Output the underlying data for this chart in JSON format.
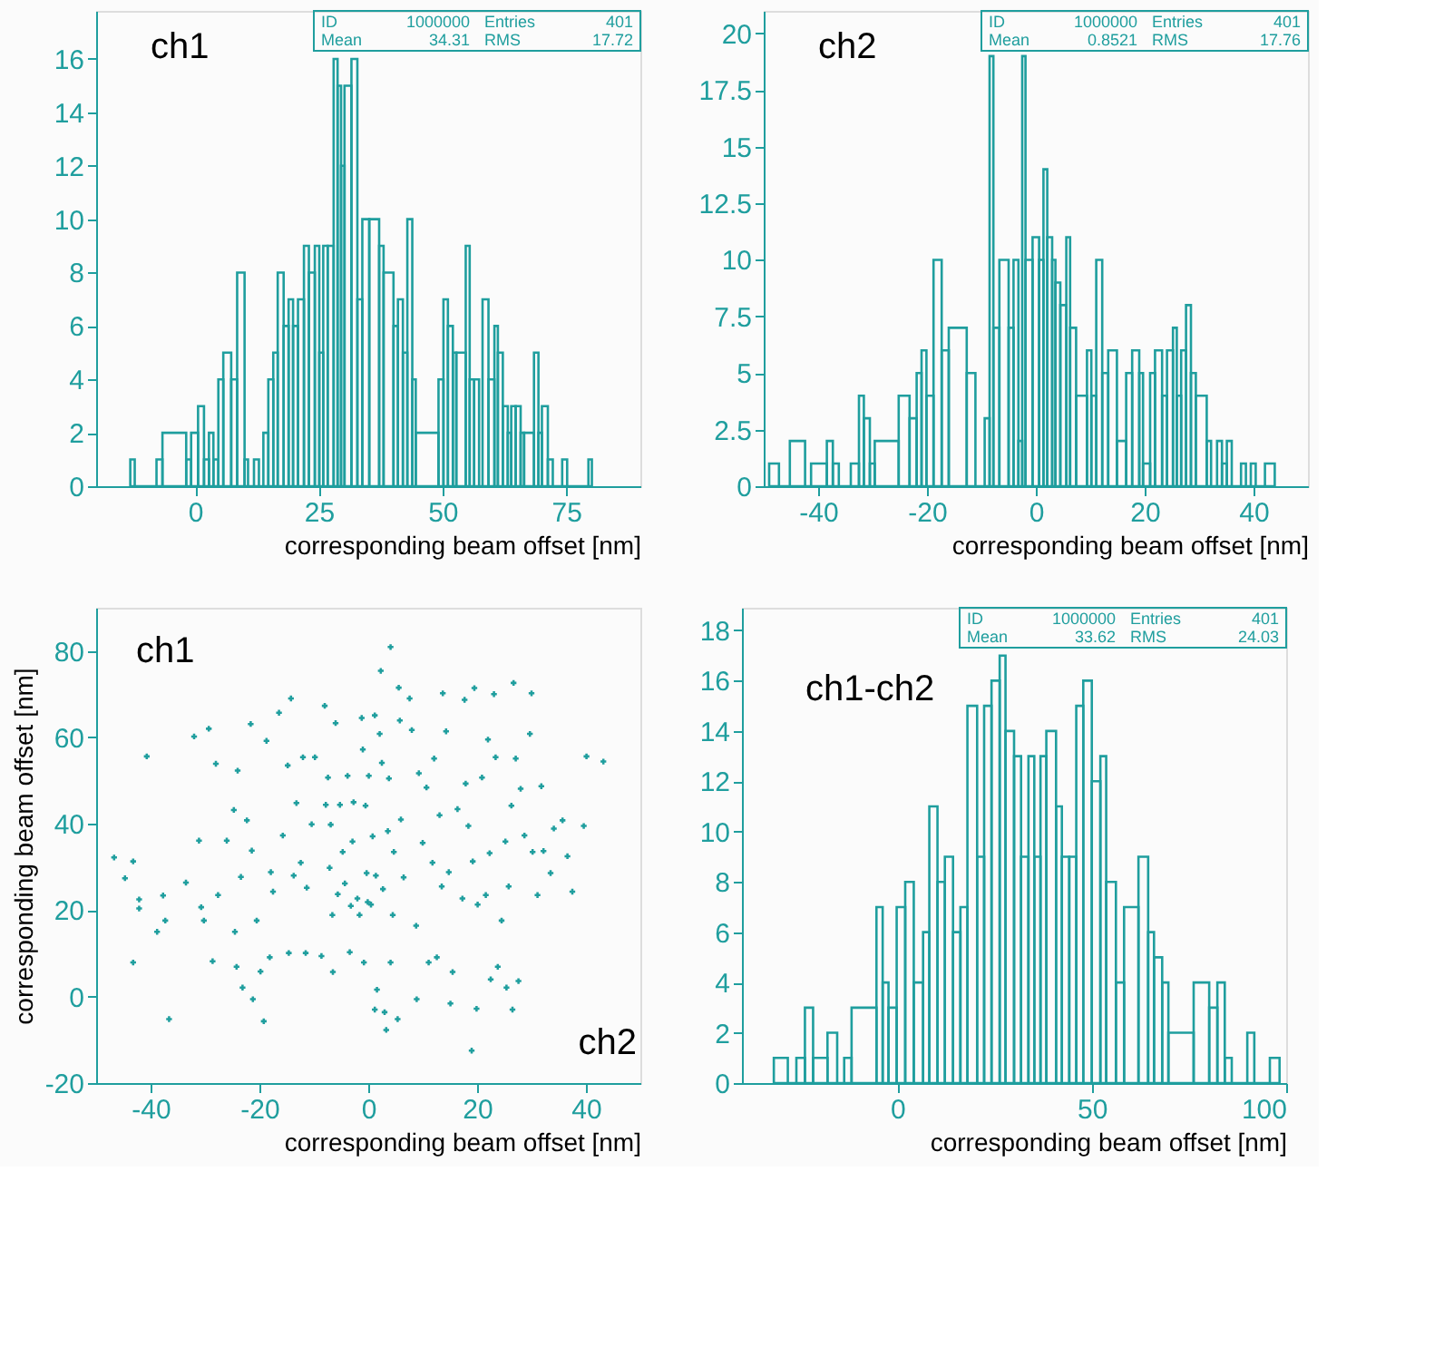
{
  "chart_data": [
    {
      "type": "histogram",
      "color": "#1f9e9e",
      "xlabel": "corresponding beam offset [nm]",
      "grid": false,
      "xlim": [
        -20,
        90
      ],
      "ylim": [
        0,
        17.8
      ],
      "xticks": [
        0,
        25,
        50,
        75
      ],
      "yticks": [
        0,
        2,
        4,
        6,
        8,
        10,
        12,
        14,
        16
      ],
      "annotations": [
        "ch1",
        "ID",
        "1000000",
        "Entries",
        "401",
        "Mean",
        "34.31",
        "RMS",
        "17.72"
      ],
      "bins": [
        -13.1,
        -12.2,
        -7.8,
        -6.6,
        -1.8,
        -0.8,
        0.6,
        1.8,
        2.8,
        3.7,
        4.7,
        5.7,
        7.3,
        8.5,
        10.0,
        10.7,
        11.9,
        12.9,
        13.8,
        14.8,
        15.8,
        16.7,
        17.9,
        18.9,
        19.8,
        20.8,
        22.0,
        23.0,
        24.2,
        25.1,
        25.9,
        26.8,
        28.0,
        28.8,
        29.5,
        30.2,
        31.6,
        32.8,
        33.8,
        35.2,
        37.2,
        38.1,
        40.1,
        41.0,
        42.0,
        42.9,
        43.9,
        44.6,
        49.2,
        50.2,
        51.1,
        52.1,
        52.8,
        54.7,
        55.5,
        56.4,
        57.4,
        58.1,
        59.3,
        60.5,
        61.2,
        62.2,
        63.2,
        63.9,
        64.8,
        65.8,
        66.5,
        68.5,
        69.4,
        70.1,
        71.3,
        72.3,
        74.2,
        75.2,
        79.5,
        80.2
      ],
      "values": [
        1,
        0,
        1,
        2,
        1,
        2,
        3,
        1,
        2,
        1,
        4,
        5,
        4,
        8,
        1,
        0,
        1,
        0,
        2,
        4,
        5,
        8,
        6,
        7,
        6,
        7,
        9,
        8,
        9,
        5,
        9,
        9,
        16,
        15,
        12,
        15,
        16,
        7,
        10,
        10,
        9,
        8,
        6,
        7,
        5,
        10,
        4,
        2,
        4,
        7,
        6,
        5,
        5,
        9,
        4,
        4,
        0,
        7,
        4,
        6,
        5,
        3,
        2,
        3,
        3,
        2,
        2,
        5,
        2,
        3,
        1,
        0,
        1,
        0,
        1
      ]
    },
    {
      "type": "histogram",
      "color": "#1f9e9e",
      "xlabel": "corresponding beam offset [nm]",
      "grid": false,
      "xlim": [
        -50,
        50
      ],
      "ylim": [
        0,
        21
      ],
      "xticks": [
        -40,
        -20,
        0,
        20,
        40
      ],
      "yticks": [
        0,
        2.5,
        5,
        7.5,
        10,
        12.5,
        15,
        17.5,
        20
      ],
      "annotations": [
        "ch2",
        "ID",
        "1000000",
        "Entries",
        "401",
        "Mean",
        "0.8521",
        "RMS",
        "17.76"
      ],
      "bins": [
        -49.0,
        -47.2,
        -45.2,
        -42.4,
        -41.3,
        -38.4,
        -37.3,
        -36.2,
        -34.0,
        -32.5,
        -31.6,
        -30.5,
        -29.6,
        -25.2,
        -23.2,
        -21.9,
        -21.0,
        -20.1,
        -18.8,
        -17.3,
        -16.0,
        -12.7,
        -11.1,
        -9.4,
        -8.5,
        -7.8,
        -6.7,
        -5.0,
        -4.1,
        -3.2,
        -2.5,
        -1.9,
        -0.6,
        0.6,
        1.4,
        2.1,
        3.0,
        3.6,
        4.5,
        5.6,
        6.3,
        7.4,
        9.4,
        10.2,
        11.1,
        12.2,
        13.3,
        14.9,
        16.6,
        17.7,
        19.0,
        19.7,
        21.0,
        21.9,
        23.2,
        24.1,
        25.2,
        25.9,
        26.7,
        27.6,
        28.5,
        29.4,
        31.4,
        32.2,
        33.3,
        34.2,
        35.1,
        36.0,
        37.7,
        38.6,
        39.5,
        40.4,
        42.1,
        43.9
      ],
      "values": [
        1,
        0,
        2,
        0,
        1,
        2,
        1,
        0,
        1,
        4,
        3,
        1,
        2,
        4,
        3,
        5,
        6,
        4,
        10,
        6,
        7,
        5,
        0,
        3,
        19,
        7,
        10,
        7,
        10,
        2,
        19,
        10,
        11,
        10,
        14,
        11,
        10,
        9,
        8,
        11,
        7,
        4,
        6,
        4,
        10,
        5,
        6,
        2,
        5,
        6,
        5,
        1,
        5,
        6,
        4,
        6,
        7,
        4,
        6,
        8,
        5,
        4,
        2,
        0,
        2,
        1,
        2,
        0,
        1,
        0,
        1,
        0,
        1
      ]
    },
    {
      "type": "scatter",
      "color": "#1f9e9e",
      "marker": "cross",
      "xlabel": "corresponding beam offset [nm]",
      "ylabel": "corresponding beam offset [nm]",
      "grid": false,
      "xlim": [
        -50,
        50
      ],
      "ylim": [
        -20,
        90
      ],
      "xticks": [
        -40,
        -20,
        0,
        20,
        40
      ],
      "yticks": [
        -20,
        0,
        20,
        40,
        60,
        80
      ],
      "annotations": [
        "ch1",
        "ch2"
      ],
      "x": [
        -46.7,
        -44.7,
        -43.2,
        -40.7,
        -43.2,
        -42.1,
        -42.1,
        -38.8,
        -37.7,
        -37.3,
        -36.6,
        -33.5,
        -32.0,
        -31.1,
        -30.7,
        -30.2,
        -29.3,
        -28.6,
        -28.0,
        -27.6,
        -26.0,
        -24.7,
        -24.5,
        -24.0,
        -24.2,
        -23.4,
        -23.1,
        -22.3,
        -21.6,
        -21.4,
        -21.2,
        -20.5,
        -19.8,
        -19.2,
        -18.7,
        -17.9,
        -18.1,
        -17.5,
        -16.4,
        -15.7,
        -14.8,
        -14.6,
        -14.2,
        -13.7,
        -13.2,
        -12.4,
        -12.0,
        -11.5,
        -11.3,
        -10.4,
        -9.8,
        -8.6,
        -8.0,
        -7.8,
        -7.4,
        -7.1,
        -6.9,
        -6.6,
        -6.5,
        -6.0,
        -5.6,
        -5.2,
        -4.7,
        -4.3,
        -3.8,
        -3.4,
        -3.2,
        -2.9,
        -2.7,
        -2.0,
        -1.6,
        -1.2,
        -1.0,
        -0.8,
        -0.5,
        -0.3,
        -0.1,
        0.1,
        0.5,
        0.8,
        1.2,
        1.2,
        1.4,
        1.6,
        2.1,
        2.3,
        2.5,
        2.7,
        3.0,
        3.3,
        3.6,
        3.8,
        4.1,
        4.1,
        4.5,
        4.7,
        5.4,
        5.6,
        5.8,
        6.0,
        6.5,
        7.6,
        8.0,
        8.8,
        8.9,
        9.3,
        10.0,
        10.7,
        11.1,
        11.8,
        12.1,
        12.6,
        13.1,
        13.5,
        13.7,
        14.3,
        14.8,
        15.1,
        15.5,
        16.4,
        17.3,
        17.7,
        17.9,
        18.4,
        19.0,
        19.2,
        19.5,
        19.9,
        20.1,
        20.9,
        21.6,
        22.0,
        22.3,
        22.5,
        23.1,
        23.4,
        23.8,
        24.5,
        25.2,
        25.4,
        25.8,
        26.3,
        26.5,
        26.7,
        27.1,
        27.6,
        28.0,
        28.7,
        29.7,
        30.0,
        30.2,
        31.1,
        31.8,
        32.2,
        33.5,
        34.1,
        35.7,
        36.6,
        37.5,
        39.6,
        40.1,
        43.2
      ],
      "values": [
        32.2,
        27.4,
        31.3,
        55.6,
        7.9,
        22.5,
        20.4,
        15.0,
        23.4,
        17.6,
        -5.2,
        26.4,
        60.2,
        36.1,
        20.7,
        17.6,
        62.0,
        8.2,
        53.9,
        23.5,
        36.1,
        43.2,
        15.0,
        52.3,
        6.9,
        27.7,
        2.1,
        40.8,
        63.1,
        33.8,
        -0.6,
        17.6,
        5.8,
        -5.7,
        59.2,
        28.8,
        9.1,
        24.3,
        65.7,
        37.3,
        53.5,
        10.1,
        69.0,
        28.0,
        44.8,
        31.0,
        55.4,
        10.1,
        25.2,
        39.9,
        55.4,
        9.4,
        67.3,
        44.4,
        50.7,
        29.8,
        39.8,
        18.9,
        5.7,
        63.3,
        23.7,
        44.4,
        33.5,
        26.2,
        51.1,
        10.3,
        21.0,
        35.9,
        45.0,
        22.7,
        18.9,
        64.5,
        57.2,
        7.9,
        44.2,
        28.6,
        21.9,
        51.1,
        21.3,
        37.1,
        65.1,
        -3.0,
        28.0,
        1.6,
        60.8,
        75.4,
        54.1,
        24.9,
        -3.6,
        -7.7,
        38.3,
        50.5,
        80.9,
        7.9,
        18.9,
        33.5,
        -5.2,
        71.5,
        63.9,
        41.0,
        27.6,
        69.0,
        61.7,
        16.4,
        -0.6,
        51.7,
        35.6,
        48.4,
        7.9,
        31.0,
        55.1,
        9.1,
        42.0,
        25.5,
        70.2,
        61.4,
        28.8,
        -1.6,
        5.7,
        43.4,
        22.7,
        68.7,
        49.3,
        39.5,
        -12.5,
        31.3,
        71.4,
        -2.8,
        21.3,
        50.7,
        23.5,
        59.5,
        33.2,
        4.0,
        70.0,
        55.4,
        6.9,
        17.6,
        35.9,
        2.1,
        25.5,
        44.2,
        -3.0,
        72.6,
        55.1,
        3.6,
        48.1,
        37.3,
        60.8,
        70.2,
        33.5,
        23.5,
        48.7,
        33.7,
        28.6,
        38.9,
        40.8,
        32.5,
        24.3,
        39.5,
        55.6,
        54.4
      ]
    },
    {
      "type": "histogram",
      "color": "#1f9e9e",
      "xlabel": "corresponding beam offset [nm]",
      "grid": false,
      "xlim": [
        -40,
        100
      ],
      "ylim": [
        0,
        18.9
      ],
      "xticks": [
        0,
        50,
        100
      ],
      "yticks": [
        0,
        2,
        4,
        6,
        8,
        10,
        12,
        14,
        16,
        18
      ],
      "annotations": [
        "ch1-ch2",
        "ID",
        "1000000",
        "Entries",
        "401",
        "Mean",
        "33.62",
        "RMS",
        "24.03"
      ],
      "bins": [
        -31.8,
        -28.2,
        -26.0,
        -23.8,
        -21.7,
        -18.0,
        -15.5,
        -13.7,
        -11.8,
        -5.4,
        -3.8,
        -2.3,
        -0.2,
        2.0,
        4.2,
        6.6,
        8.2,
        10.3,
        12.2,
        14.3,
        16.2,
        18.0,
        20.5,
        22.3,
        24.2,
        26.3,
        27.8,
        30.0,
        31.8,
        33.7,
        35.2,
        36.8,
        38.3,
        40.8,
        42.3,
        44.2,
        46.0,
        47.8,
        50.0,
        52.2,
        53.7,
        56.2,
        58.3,
        62.0,
        64.5,
        66.0,
        68.1,
        69.7,
        76.2,
        80.2,
        82.3,
        84.2,
        86.0,
        90.0,
        91.8,
        95.8,
        98.3
      ],
      "values": [
        1,
        0,
        1,
        3,
        1,
        2,
        0,
        1,
        3,
        7,
        4,
        3,
        7,
        8,
        4,
        6,
        11,
        8,
        9,
        6,
        7,
        15,
        9,
        15,
        16,
        17,
        14,
        13,
        9,
        13,
        9,
        13,
        14,
        11,
        9,
        9,
        15,
        16,
        12,
        13,
        8,
        4,
        7,
        9,
        6,
        5,
        4,
        2,
        4,
        3,
        4,
        1,
        0,
        2,
        0,
        1
      ]
    }
  ]
}
